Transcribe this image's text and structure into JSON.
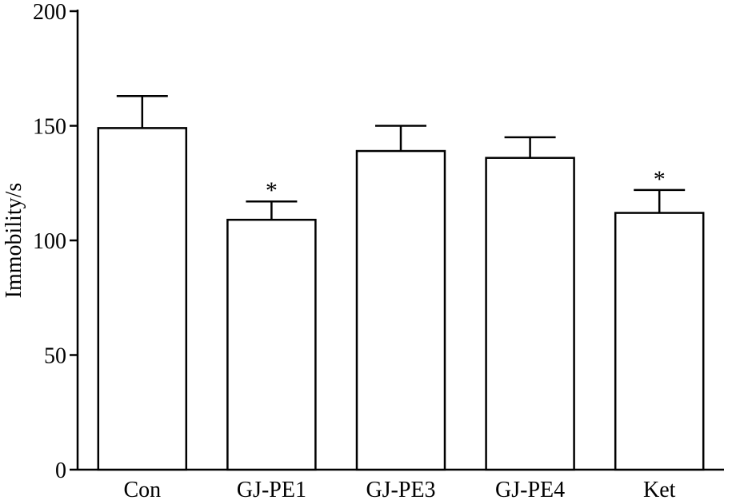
{
  "chart_data": {
    "type": "bar",
    "categories": [
      "Con",
      "GJ-PE1",
      "GJ-PE3",
      "GJ-PE4",
      "Ket"
    ],
    "values": [
      149,
      109,
      139,
      136,
      112
    ],
    "error_upper": [
      163,
      117,
      150,
      145,
      122
    ],
    "annotations": [
      "",
      "*",
      "",
      "",
      "*"
    ],
    "ylabel": "Immobility/s",
    "ylim": [
      0,
      200
    ],
    "yticks": [
      0,
      50,
      100,
      150,
      200
    ],
    "bar_fill": "#ffffff",
    "bar_stroke": "#000000",
    "grid": false,
    "legend": "none"
  }
}
